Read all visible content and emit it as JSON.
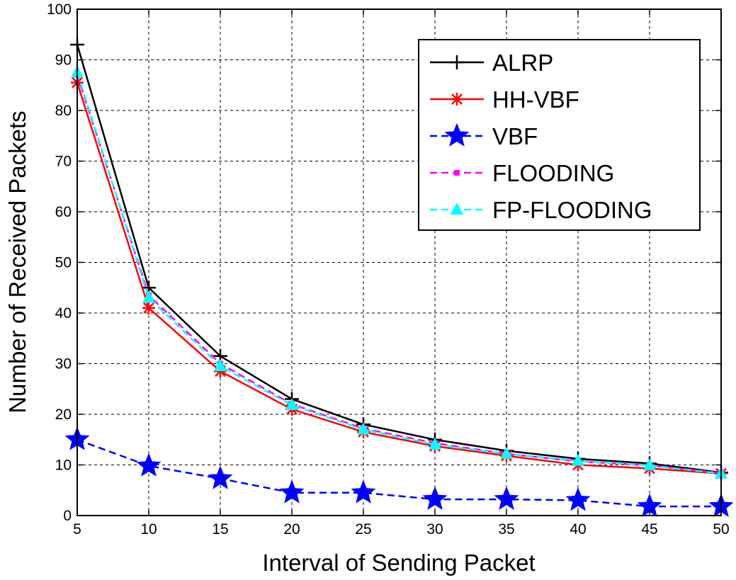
{
  "chart_data": {
    "type": "line",
    "title": "",
    "xlabel": "Interval of Sending Packet",
    "ylabel": "Number of Received Packets",
    "x": [
      5,
      10,
      15,
      20,
      25,
      30,
      35,
      40,
      45,
      50
    ],
    "xlim": [
      5,
      50
    ],
    "ylim": [
      0,
      100
    ],
    "xticks": [
      "5",
      "10",
      "15",
      "20",
      "25",
      "30",
      "35",
      "40",
      "45",
      "50"
    ],
    "yticks": [
      "0",
      "10",
      "20",
      "30",
      "40",
      "50",
      "60",
      "70",
      "80",
      "90",
      "100"
    ],
    "grid": true,
    "legend_position": "top-right",
    "series": [
      {
        "name": "ALRP",
        "color": "#000000",
        "dash": "solid",
        "marker": "plus",
        "values": [
          93,
          45,
          31.5,
          23,
          18,
          15,
          12.8,
          11.2,
          10.3,
          8.5
        ]
      },
      {
        "name": "HH-VBF",
        "color": "#ff0000",
        "dash": "solid",
        "marker": "asterisk",
        "values": [
          85.5,
          41,
          28.5,
          21,
          16.5,
          13.7,
          11.8,
          10,
          9.3,
          8.3
        ]
      },
      {
        "name": "VBF",
        "color": "#0000ff",
        "dash": "dashed",
        "marker": "star",
        "values": [
          15,
          9.8,
          7.3,
          4.5,
          4.5,
          3.2,
          3.2,
          3,
          1.8,
          1.8
        ]
      },
      {
        "name": "FLOODING",
        "color": "#ff00ff",
        "dash": "dashed",
        "marker": "square",
        "values": [
          87,
          43.5,
          30,
          22,
          17.2,
          14.3,
          12.2,
          10.7,
          9.9,
          8.4
        ]
      },
      {
        "name": "FP-FLOODING",
        "color": "#00ffff",
        "dash": "dashed",
        "marker": "triangle",
        "values": [
          87.5,
          43,
          29.5,
          21.8,
          17,
          14,
          12.2,
          10.8,
          9.9,
          8.3
        ]
      }
    ]
  }
}
